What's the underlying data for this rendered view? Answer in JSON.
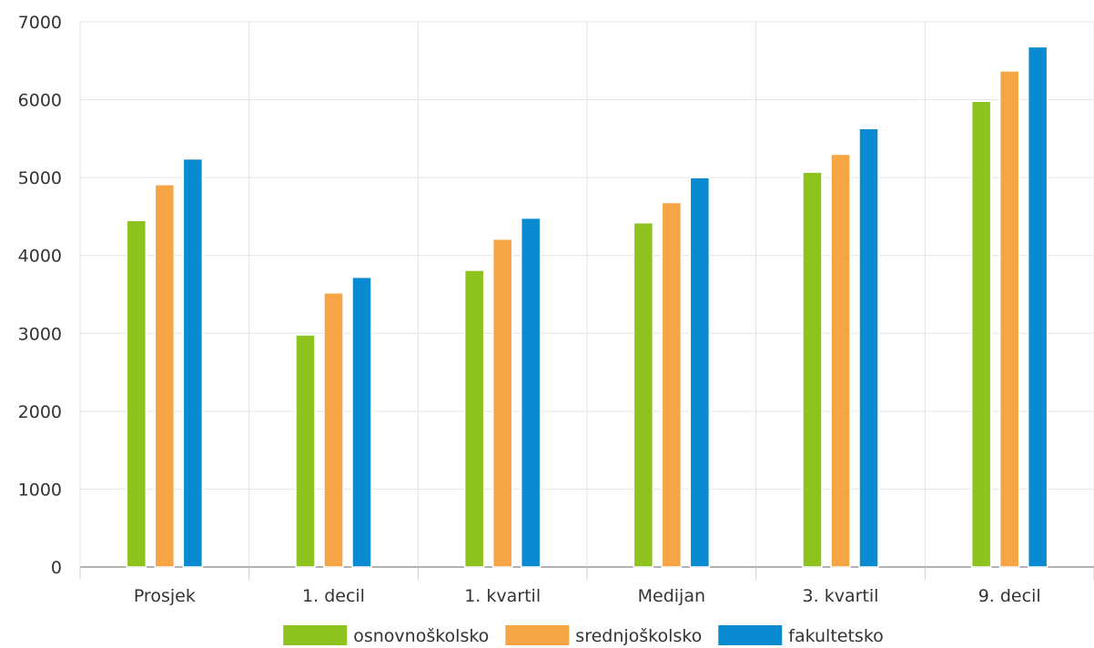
{
  "chart_data": {
    "type": "bar",
    "title": "",
    "xlabel": "",
    "ylabel": "",
    "categories": [
      "Prosjek",
      "1. decil",
      "1. kvartil",
      "Medijan",
      "3. kvartil",
      "9. decil"
    ],
    "ylim": [
      0,
      7000
    ],
    "yticks": [
      0,
      1000,
      2000,
      3000,
      4000,
      5000,
      6000,
      7000
    ],
    "grid": true,
    "legend_position": "bottom",
    "series": [
      {
        "name": "osnovnoškolsko",
        "color": "#8dc21f",
        "values": [
          4450,
          2980,
          3810,
          4420,
          5070,
          5980
        ]
      },
      {
        "name": "srednjoškolsko",
        "color": "#f6a544",
        "values": [
          4910,
          3520,
          4210,
          4680,
          5300,
          6370
        ]
      },
      {
        "name": "fakultetsko",
        "color": "#0a8ad0",
        "values": [
          5240,
          3720,
          4480,
          5000,
          5630,
          6680
        ]
      }
    ]
  }
}
